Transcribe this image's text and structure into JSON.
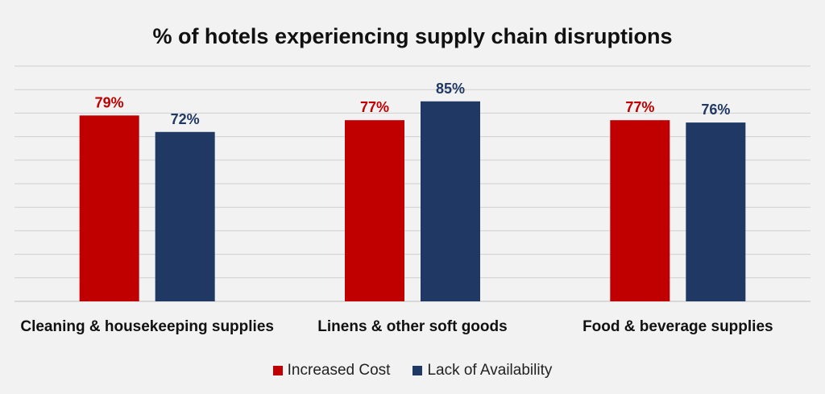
{
  "chart_data": {
    "type": "bar",
    "title": "% of hotels experiencing supply chain disruptions",
    "categories": [
      "Cleaning & housekeeping supplies",
      "Linens & other soft goods",
      "Food & beverage supplies"
    ],
    "series": [
      {
        "name": "Increased Cost",
        "color": "#c00000",
        "values": [
          79,
          77,
          77
        ],
        "labels": [
          "79%",
          "77%",
          "77%"
        ]
      },
      {
        "name": "Lack of Availability",
        "color": "#1f3864",
        "values": [
          72,
          85,
          76
        ],
        "labels": [
          "72%",
          "85%",
          "76%"
        ]
      }
    ],
    "xlabel": "",
    "ylabel": "",
    "ylim": [
      0,
      100
    ],
    "grid": true,
    "legend_position": "bottom"
  }
}
